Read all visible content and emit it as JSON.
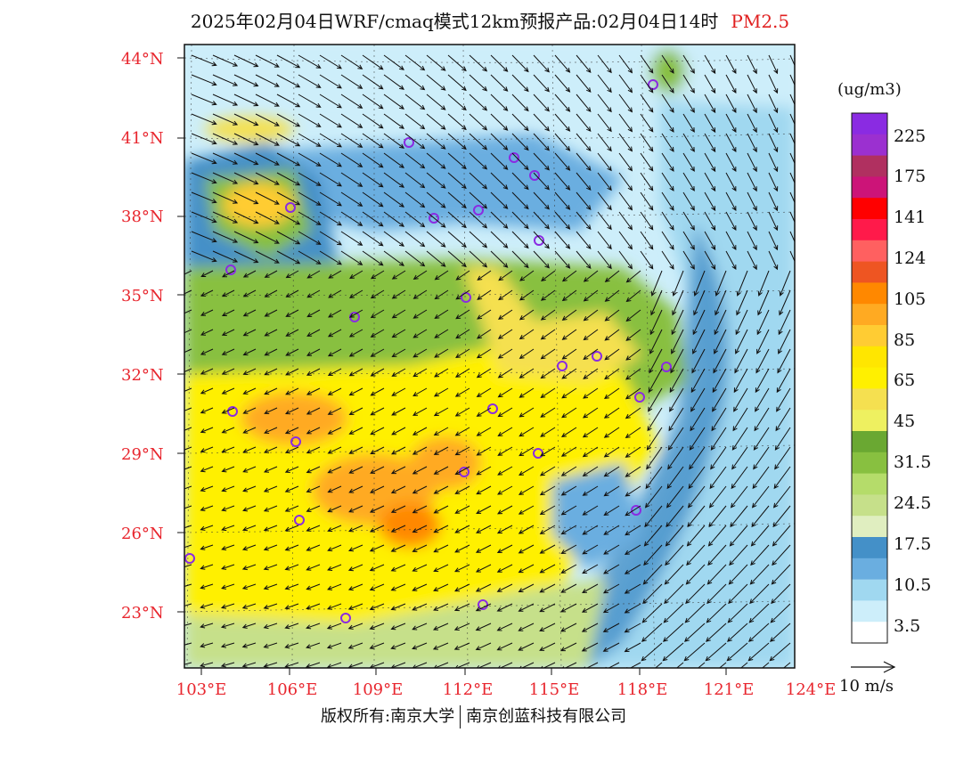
{
  "title": {
    "main": "2025年02月04日WRF/cmaq模式12km预报产品:02月04日14时",
    "species": "PM2.5"
  },
  "map": {
    "lat_labels": [
      "44°N",
      "41°N",
      "38°N",
      "35°N",
      "32°N",
      "29°N",
      "26°N",
      "23°N"
    ],
    "lon_labels": [
      "103°E",
      "106°E",
      "109°E",
      "112°E",
      "115°E",
      "118°E",
      "121°E",
      "124°E"
    ]
  },
  "colorbar": {
    "unit": "(ug/m3)",
    "labels": [
      "225",
      "175",
      "141",
      "124",
      "105",
      "85",
      "65",
      "45",
      "31.5",
      "24.5",
      "17.5",
      "10.5",
      "3.5"
    ],
    "colors": [
      "#8a2be2",
      "#9b30d0",
      "#b03060",
      "#cc1478",
      "#ff0000",
      "#ff1a4a",
      "#ff6060",
      "#ee5522",
      "#ff8800",
      "#ffaa22",
      "#ffcc33",
      "#ffe600",
      "#fff000",
      "#f5e050",
      "#eef060",
      "#6aa832",
      "#88c040",
      "#b5dc6a",
      "#c6e08a",
      "#e0eec0",
      "#4490c8",
      "#6aaee0",
      "#a0d8f0",
      "#cdeefa",
      "#ffffff"
    ]
  },
  "wind_legend": {
    "label": "10 m/s"
  },
  "footer": {
    "copyright": "版权所有:南京大学",
    "company": "南京创蓝科技有限公司"
  }
}
